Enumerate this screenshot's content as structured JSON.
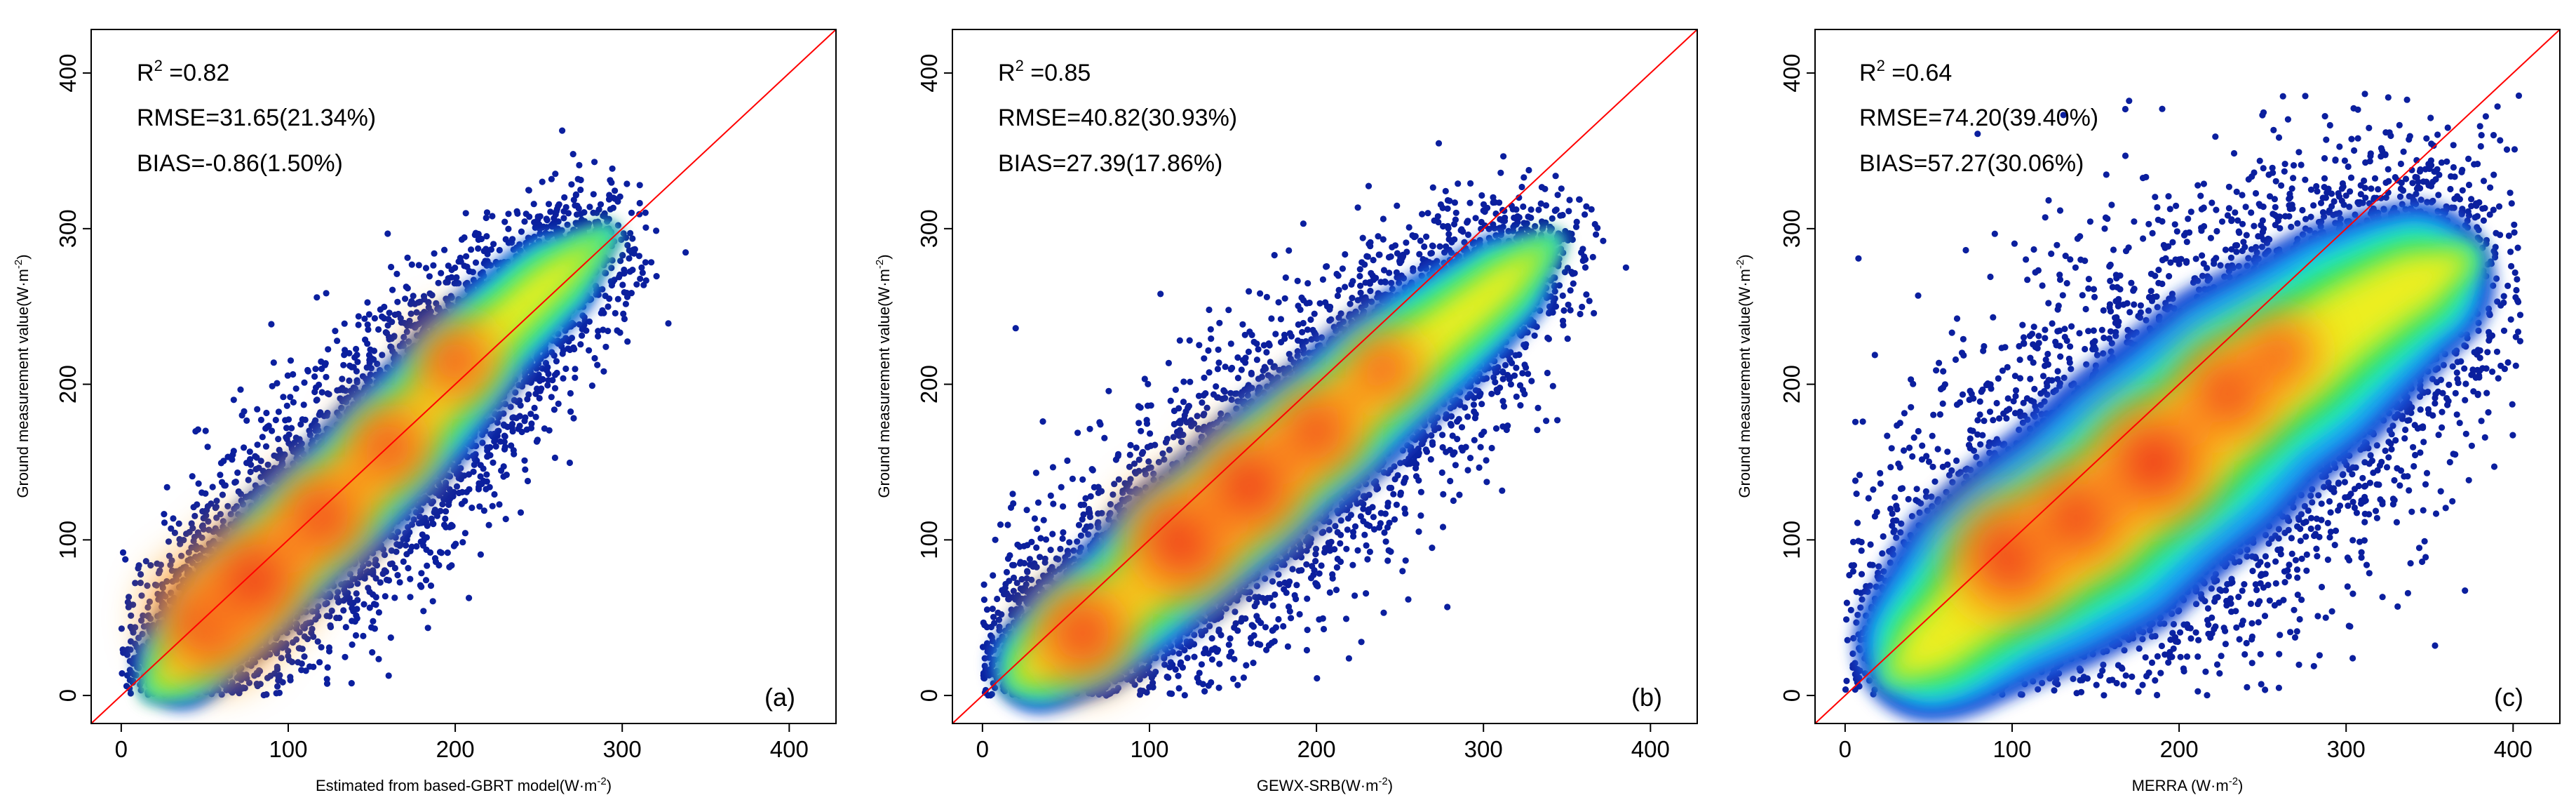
{
  "chart_data": [
    {
      "type": "scatter",
      "panel_label": "(a)",
      "xlabel": "Estimated from based-GBRT model(W·m",
      "xlabel_sup": "-2",
      "xlabel_end": ")",
      "ylabel": "Ground measurement value(W·m",
      "ylabel_sup": "-2",
      "ylabel_end": ")",
      "xlim": [
        -18,
        428
      ],
      "ylim": [
        -18,
        428
      ],
      "xticks": [
        0,
        100,
        200,
        300,
        400
      ],
      "yticks": [
        0,
        100,
        200,
        300,
        400
      ],
      "stats": {
        "r2_prefix": "R",
        "r2_sup": "2",
        "r2_value": " =0.82",
        "rmse": "RMSE=31.65(21.34%)",
        "bias": "BIAS=-0.86(1.50%)"
      },
      "reference_line": "1:1",
      "density_ridge": [
        [
          20,
          5
        ],
        [
          40,
          25
        ],
        [
          60,
          50
        ],
        [
          80,
          72
        ],
        [
          100,
          95
        ],
        [
          120,
          115
        ],
        [
          140,
          135
        ],
        [
          160,
          158
        ],
        [
          180,
          180
        ],
        [
          200,
          205
        ],
        [
          220,
          230
        ],
        [
          250,
          260
        ],
        [
          290,
          295
        ]
      ],
      "density_width": [
        14,
        18,
        20,
        22,
        24,
        24,
        24,
        24,
        23,
        22,
        20,
        18,
        14
      ],
      "density_peaks": [
        [
          55,
          50,
          1.0
        ],
        [
          80,
          75,
          0.95
        ],
        [
          120,
          115,
          0.85
        ],
        [
          160,
          160,
          0.75
        ],
        [
          200,
          215,
          0.7
        ]
      ],
      "point_count": 5200,
      "seed": 11
    },
    {
      "type": "scatter",
      "panel_label": "(b)",
      "xlabel": "GEWX-SRB(W·m",
      "xlabel_sup": "-2",
      "xlabel_end": ")",
      "ylabel": "Ground measurement value(W·m",
      "ylabel_sup": "-2",
      "ylabel_end": ")",
      "xlim": [
        -18,
        428
      ],
      "ylim": [
        -18,
        428
      ],
      "xticks": [
        0,
        100,
        200,
        300,
        400
      ],
      "yticks": [
        0,
        100,
        200,
        300,
        400
      ],
      "stats": {
        "r2_prefix": "R",
        "r2_sup": "2",
        "r2_value": " =0.85",
        "rmse": "RMSE=40.82(30.93%)",
        "bias": "BIAS=27.39(17.86%)"
      },
      "reference_line": "1:1",
      "density_ridge": [
        [
          20,
          10
        ],
        [
          40,
          25
        ],
        [
          60,
          40
        ],
        [
          90,
          65
        ],
        [
          120,
          95
        ],
        [
          150,
          120
        ],
        [
          180,
          150
        ],
        [
          210,
          175
        ],
        [
          240,
          205
        ],
        [
          270,
          230
        ],
        [
          300,
          255
        ],
        [
          340,
          290
        ]
      ],
      "density_width": [
        14,
        20,
        24,
        26,
        28,
        28,
        28,
        27,
        26,
        24,
        20,
        14
      ],
      "density_peaks": [
        [
          60,
          40,
          0.85
        ],
        [
          120,
          100,
          1.0
        ],
        [
          160,
          135,
          0.95
        ],
        [
          200,
          170,
          0.8
        ],
        [
          240,
          210,
          0.65
        ]
      ],
      "point_count": 5200,
      "seed": 23
    },
    {
      "type": "scatter",
      "panel_label": "(c)",
      "xlabel": "MERRA (W·m",
      "xlabel_sup": "-2",
      "xlabel_end": ")",
      "ylabel": "Ground measurement value(W·m",
      "ylabel_sup": "-2",
      "ylabel_end": ")",
      "xlim": [
        -18,
        428
      ],
      "ylim": [
        -18,
        428
      ],
      "xticks": [
        0,
        100,
        200,
        300,
        400
      ],
      "yticks": [
        0,
        100,
        200,
        300,
        400
      ],
      "stats": {
        "r2_prefix": "R",
        "r2_sup": "2",
        "r2_value": " =0.64",
        "rmse": "RMSE=74.20(39.40%)",
        "bias": "BIAS=57.27(30.06%)"
      },
      "reference_line": "1:1",
      "density_ridge": [
        [
          30,
          15
        ],
        [
          60,
          40
        ],
        [
          90,
          70
        ],
        [
          120,
          90
        ],
        [
          150,
          110
        ],
        [
          180,
          140
        ],
        [
          210,
          165
        ],
        [
          240,
          195
        ],
        [
          270,
          215
        ],
        [
          300,
          240
        ],
        [
          330,
          260
        ],
        [
          370,
          280
        ]
      ],
      "density_width": [
        20,
        32,
        40,
        44,
        46,
        46,
        46,
        44,
        42,
        38,
        32,
        24
      ],
      "density_peaks": [
        [
          100,
          90,
          1.0
        ],
        [
          140,
          115,
          0.9
        ],
        [
          185,
          150,
          1.0
        ],
        [
          230,
          195,
          0.85
        ],
        [
          260,
          220,
          0.65
        ]
      ],
      "point_count": 5600,
      "seed": 37
    }
  ]
}
